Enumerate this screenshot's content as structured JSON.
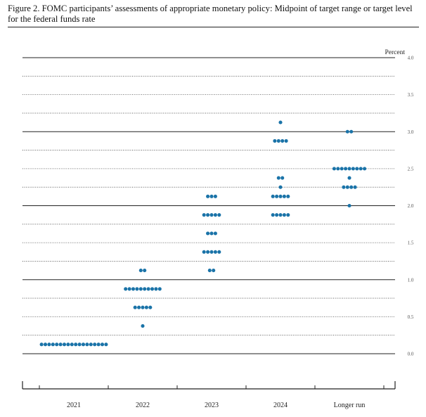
{
  "figure": {
    "title": "Figure 2.  FOMC participants’ assessments of appropriate monetary policy:  Midpoint of target range or target level for the federal funds rate"
  },
  "chart_data": {
    "type": "scatter",
    "subtype": "dot plot",
    "title": "Figure 2.  FOMC participants’ assessments of appropriate monetary policy:  Midpoint of target range or target level for the federal funds rate",
    "ylabel": "Percent",
    "categories": [
      "2021",
      "2022",
      "2023",
      "2024",
      "Longer run"
    ],
    "ylim": [
      0.0,
      4.0
    ],
    "yticks": [
      "0.0",
      "0.5",
      "1.0",
      "1.5",
      "2.0",
      "2.5",
      "3.0",
      "3.5",
      "4.0"
    ],
    "grid": true,
    "dot_color": "#1a73a8",
    "series": [
      {
        "category": "2021",
        "dots": [
          {
            "y": 0.125,
            "count": 18
          }
        ]
      },
      {
        "category": "2022",
        "dots": [
          {
            "y": 0.375,
            "count": 1
          },
          {
            "y": 0.625,
            "count": 5
          },
          {
            "y": 0.875,
            "count": 10
          },
          {
            "y": 1.125,
            "count": 2
          }
        ]
      },
      {
        "category": "2023",
        "dots": [
          {
            "y": 1.125,
            "count": 2
          },
          {
            "y": 1.375,
            "count": 5
          },
          {
            "y": 1.625,
            "count": 3
          },
          {
            "y": 1.875,
            "count": 5
          },
          {
            "y": 2.125,
            "count": 3
          }
        ]
      },
      {
        "category": "2024",
        "dots": [
          {
            "y": 1.875,
            "count": 5
          },
          {
            "y": 2.125,
            "count": 5
          },
          {
            "y": 2.25,
            "count": 1
          },
          {
            "y": 2.375,
            "count": 2
          },
          {
            "y": 2.875,
            "count": 4
          },
          {
            "y": 3.125,
            "count": 1
          }
        ]
      },
      {
        "category": "Longer run",
        "dots": [
          {
            "y": 2.0,
            "count": 1
          },
          {
            "y": 2.25,
            "count": 4
          },
          {
            "y": 2.375,
            "count": 1
          },
          {
            "y": 2.5,
            "count": 9
          },
          {
            "y": 3.0,
            "count": 2
          }
        ]
      }
    ]
  }
}
